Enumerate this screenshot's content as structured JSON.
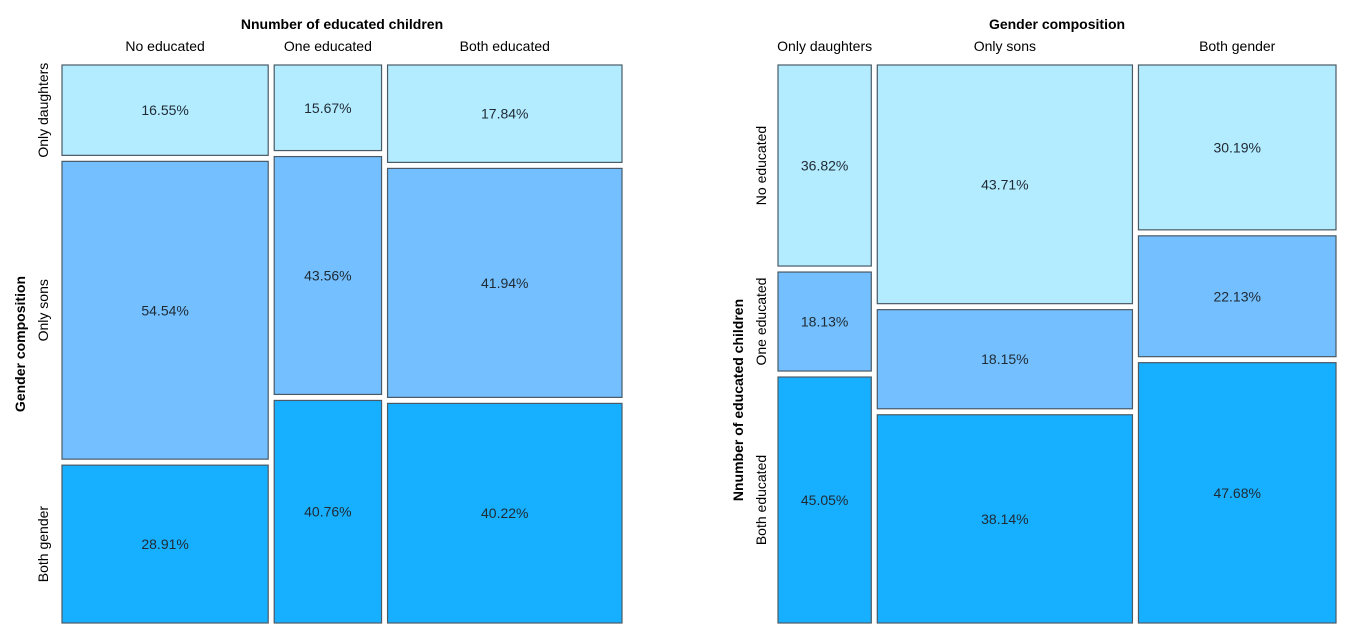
{
  "colors": {
    "no_educated_or_daughters": "#B3EBFF",
    "middle": "#73BFFF",
    "dark": "#17AFFF",
    "border": "#4A5A66"
  },
  "chart_data": [
    {
      "type": "mosaic",
      "title": "Nnumber of educated children",
      "xlabel": "Nnumber of educated children",
      "ylabel": "Gender composition",
      "columns": [
        "No educated",
        "One educated",
        "Both educated"
      ],
      "rows": [
        "Only daughters",
        "Only sons",
        "Both gender"
      ],
      "column_share": [
        0.365,
        0.19,
        0.415
      ],
      "row_colors": [
        "#B3EBFF",
        "#73BFFF",
        "#17AFFF"
      ],
      "cells": [
        {
          "column": "No educated",
          "values": [
            16.55,
            54.54,
            28.91
          ],
          "labels": [
            "16.55%",
            "54.54%",
            "28.91%"
          ]
        },
        {
          "column": "One educated",
          "values": [
            15.67,
            43.56,
            40.76
          ],
          "labels": [
            "15.67%",
            "43.56%",
            "40.76%"
          ]
        },
        {
          "column": "Both educated",
          "values": [
            17.84,
            41.94,
            40.22
          ],
          "labels": [
            "17.84%",
            "41.94%",
            "40.22%"
          ]
        }
      ]
    },
    {
      "type": "mosaic",
      "title": "Gender composition",
      "xlabel": "Gender composition",
      "ylabel": "Nnumber of educated children",
      "columns": [
        "Only daughters",
        "Only sons",
        "Both gender"
      ],
      "rows": [
        "No educated",
        "One educated",
        "Both educated"
      ],
      "column_share": [
        0.17,
        0.465,
        0.36
      ],
      "row_colors": [
        "#B3EBFF",
        "#73BFFF",
        "#17AFFF"
      ],
      "cells": [
        {
          "column": "Only daughters",
          "values": [
            36.82,
            18.13,
            45.05
          ],
          "labels": [
            "36.82%",
            "18.13%",
            "45.05%"
          ]
        },
        {
          "column": "Only sons",
          "values": [
            43.71,
            18.15,
            38.14
          ],
          "labels": [
            "43.71%",
            "18.15%",
            "38.14%"
          ]
        },
        {
          "column": "Both gender",
          "values": [
            30.19,
            22.13,
            47.68
          ],
          "labels": [
            "30.19%",
            "22.13%",
            "47.68%"
          ]
        }
      ]
    }
  ]
}
